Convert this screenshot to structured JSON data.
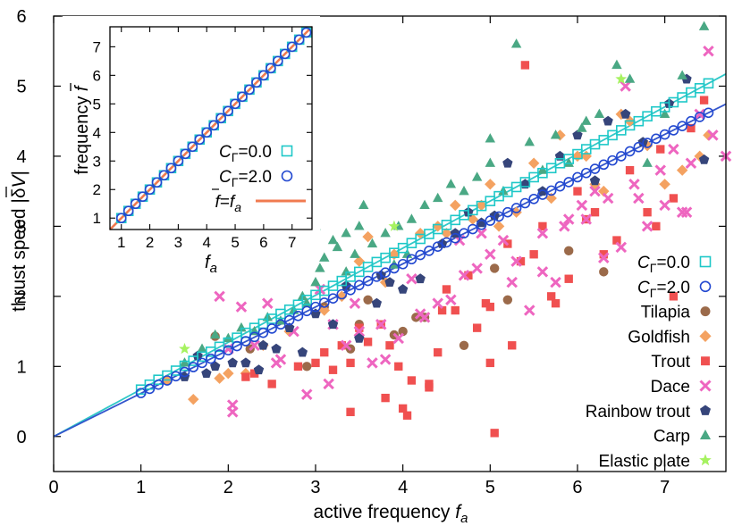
{
  "chart_data": [
    {
      "type": "scatter",
      "name": "main",
      "xlabel": "active frequency",
      "xlabel_symbol": "f",
      "xlabel_sub": "a",
      "ylabel": "thrust speed |δV|",
      "ylabel_prefix": "thrust speed |δ",
      "ylabel_symbol": "V",
      "ylabel_suffix": "|",
      "xlim": [
        0,
        7.7
      ],
      "ylim": [
        -0.5,
        6
      ],
      "xticks": [
        0,
        1,
        2,
        3,
        4,
        5,
        6,
        7
      ],
      "yticks": [
        0,
        1,
        2,
        3,
        4,
        5,
        6
      ],
      "legend_position": "bottom-right",
      "fit_lines": [
        {
          "name": "fit C=0.0",
          "color": "#2fc8c8",
          "slope": 0.672
        },
        {
          "name": "fit C=2.0",
          "color": "#3355cc",
          "slope": 0.616
        }
      ],
      "series": [
        {
          "name": "CΓ=0.0",
          "label_main": "C",
          "label_sub": "Γ",
          "label_value": "=0.0",
          "marker": "open-square",
          "color": "#1ec8c8",
          "x": [
            1.0,
            1.1,
            1.2,
            1.3,
            1.4,
            1.5,
            1.6,
            1.7,
            1.8,
            1.9,
            2.0,
            2.1,
            2.2,
            2.3,
            2.4,
            2.5,
            2.6,
            2.7,
            2.8,
            2.9,
            3.0,
            3.1,
            3.2,
            3.3,
            3.4,
            3.5,
            3.6,
            3.7,
            3.8,
            3.9,
            4.0,
            4.1,
            4.2,
            4.3,
            4.4,
            4.5,
            4.6,
            4.7,
            4.8,
            4.9,
            5.0,
            5.1,
            5.2,
            5.3,
            5.4,
            5.5,
            5.6,
            5.7,
            5.8,
            5.9,
            6.0,
            6.1,
            6.2,
            6.3,
            6.4,
            6.5,
            6.6,
            6.7,
            6.8,
            6.9,
            7.0,
            7.1,
            7.2,
            7.3,
            7.4,
            7.5
          ],
          "y": [
            0.67,
            0.74,
            0.81,
            0.87,
            0.94,
            1.01,
            1.08,
            1.14,
            1.21,
            1.28,
            1.34,
            1.41,
            1.48,
            1.55,
            1.61,
            1.68,
            1.75,
            1.81,
            1.88,
            1.95,
            2.02,
            2.08,
            2.15,
            2.22,
            2.28,
            2.35,
            2.42,
            2.49,
            2.55,
            2.62,
            2.69,
            2.76,
            2.82,
            2.89,
            2.96,
            3.02,
            3.09,
            3.16,
            3.23,
            3.29,
            3.36,
            3.43,
            3.49,
            3.56,
            3.63,
            3.7,
            3.76,
            3.83,
            3.9,
            3.96,
            4.03,
            4.1,
            4.17,
            4.23,
            4.3,
            4.37,
            4.44,
            4.5,
            4.57,
            4.64,
            4.7,
            4.77,
            4.84,
            4.91,
            4.97,
            5.04
          ]
        },
        {
          "name": "CΓ=2.0",
          "label_main": "C",
          "label_sub": "Γ",
          "label_value": "=2.0",
          "marker": "open-circle",
          "color": "#2248d0",
          "x": [
            1.0,
            1.1,
            1.2,
            1.3,
            1.4,
            1.5,
            1.6,
            1.7,
            1.8,
            1.9,
            2.0,
            2.1,
            2.2,
            2.3,
            2.4,
            2.5,
            2.6,
            2.7,
            2.8,
            2.9,
            3.0,
            3.1,
            3.2,
            3.3,
            3.4,
            3.5,
            3.6,
            3.7,
            3.8,
            3.9,
            4.0,
            4.1,
            4.2,
            4.3,
            4.4,
            4.5,
            4.6,
            4.7,
            4.8,
            4.9,
            5.0,
            5.1,
            5.2,
            5.3,
            5.4,
            5.5,
            5.6,
            5.7,
            5.8,
            5.9,
            6.0,
            6.1,
            6.2,
            6.3,
            6.4,
            6.5,
            6.6,
            6.7,
            6.8,
            6.9,
            7.0,
            7.1,
            7.2,
            7.3,
            7.4,
            7.5
          ],
          "y": [
            0.62,
            0.68,
            0.74,
            0.8,
            0.86,
            0.92,
            0.99,
            1.05,
            1.11,
            1.17,
            1.23,
            1.29,
            1.36,
            1.42,
            1.48,
            1.54,
            1.6,
            1.66,
            1.72,
            1.79,
            1.85,
            1.91,
            1.97,
            2.03,
            2.09,
            2.16,
            2.22,
            2.28,
            2.34,
            2.4,
            2.46,
            2.53,
            2.59,
            2.65,
            2.71,
            2.77,
            2.83,
            2.9,
            2.96,
            3.02,
            3.08,
            3.14,
            3.2,
            3.26,
            3.33,
            3.39,
            3.45,
            3.51,
            3.57,
            3.63,
            3.7,
            3.76,
            3.82,
            3.88,
            3.94,
            4.0,
            4.07,
            4.13,
            4.19,
            4.25,
            4.31,
            4.37,
            4.43,
            4.5,
            4.56,
            4.62
          ]
        },
        {
          "name": "Tilapia",
          "marker": "circle",
          "color": "#9b6a4a",
          "x": [
            1.85,
            2.25,
            2.9,
            3.4,
            3.5,
            3.9,
            4.0,
            4.15,
            4.25,
            4.7,
            5.05,
            5.2,
            5.9,
            6.3,
            3.1,
            3.6
          ],
          "y": [
            1.43,
            1.25,
            1.0,
            1.25,
            1.6,
            1.45,
            1.5,
            1.7,
            1.7,
            1.3,
            2.4,
            1.95,
            2.65,
            2.35,
            1.85,
            1.95
          ]
        },
        {
          "name": "Goldfish",
          "marker": "diamond",
          "color": "#f4a261",
          "x": [
            1.6,
            1.9,
            2.2,
            2.7,
            3.1,
            3.5,
            3.6,
            3.8,
            4.2,
            4.5,
            4.6,
            4.8,
            5.0,
            5.3,
            5.5,
            5.8,
            6.1,
            6.3,
            6.6,
            6.8,
            7.2,
            7.5,
            2.0,
            3.3,
            4.4,
            5.7,
            6.0,
            7.0,
            1.3,
            2.4,
            3.9,
            4.9,
            6.5,
            7.4,
            5.1,
            6.2
          ],
          "y": [
            0.53,
            0.83,
            0.9,
            1.5,
            1.8,
            2.5,
            2.85,
            2.2,
            2.9,
            2.9,
            3.3,
            3.1,
            3.6,
            3.2,
            3.9,
            4.3,
            4.0,
            3.5,
            4.5,
            4.15,
            3.8,
            4.3,
            0.9,
            2.0,
            3.0,
            3.4,
            4.0,
            3.6,
            0.8,
            1.3,
            2.6,
            3.3,
            4.6,
            4.0,
            3.0,
            3.6
          ]
        },
        {
          "name": "Trout",
          "marker": "square",
          "color": "#f05050",
          "x": [
            2.2,
            2.3,
            2.5,
            2.8,
            3.0,
            3.1,
            3.2,
            3.3,
            3.4,
            3.5,
            3.6,
            3.75,
            3.85,
            3.95,
            4.0,
            4.05,
            4.1,
            4.3,
            4.4,
            4.5,
            4.6,
            4.75,
            4.85,
            4.95,
            5.0,
            5.05,
            5.2,
            5.35,
            5.5,
            5.6,
            5.75,
            5.9,
            6.0,
            6.1,
            6.3,
            6.45,
            6.6,
            6.8,
            6.95,
            7.1,
            7.3,
            7.45,
            3.4,
            4.3,
            5.0,
            5.4,
            6.2,
            6.9,
            7.1,
            3.8,
            4.45,
            5.7,
            5.25
          ],
          "y": [
            0.85,
            0.9,
            0.75,
            1.0,
            1.05,
            1.2,
            0.95,
            1.3,
            1.05,
            1.55,
            1.35,
            1.6,
            1.3,
            1.0,
            0.4,
            0.3,
            0.8,
            0.7,
            1.2,
            2.1,
            1.8,
            2.3,
            1.55,
            1.9,
            1.05,
            0.05,
            2.75,
            2.5,
            2.6,
            3.0,
            1.9,
            2.25,
            3.5,
            3.1,
            2.6,
            2.8,
            3.8,
            3.2,
            4.1,
            3.4,
            4.4,
            4.8,
            0.35,
            0.75,
            1.85,
            5.3,
            3.2,
            3.0,
            2.0,
            0.55,
            1.8,
            2.0,
            1.3
          ]
        },
        {
          "name": "Dace",
          "marker": "x",
          "color": "#ee66c0",
          "x": [
            1.9,
            2.0,
            2.05,
            2.15,
            2.3,
            2.45,
            2.6,
            2.75,
            2.9,
            3.05,
            3.2,
            3.35,
            3.5,
            3.65,
            3.8,
            3.95,
            4.1,
            4.25,
            4.4,
            4.55,
            4.7,
            4.85,
            5.0,
            5.15,
            5.3,
            5.45,
            5.6,
            5.75,
            5.9,
            6.05,
            6.2,
            6.35,
            6.5,
            6.65,
            6.8,
            6.95,
            7.1,
            7.25,
            7.4,
            7.55,
            7.7,
            2.05,
            3.15,
            4.2,
            5.25,
            6.3,
            7.0,
            7.3,
            6.55,
            5.6,
            4.9,
            3.75,
            2.55,
            6.7,
            7.2,
            7.5,
            4.65,
            5.85,
            6.1,
            3.45
          ],
          "y": [
            2.0,
            1.25,
            0.35,
            1.85,
            1.3,
            1.9,
            1.1,
            1.5,
            0.6,
            2.1,
            1.6,
            1.3,
            1.5,
            1.05,
            1.1,
            1.4,
            2.25,
            1.7,
            1.9,
            1.95,
            2.3,
            2.4,
            2.6,
            2.8,
            2.5,
            1.8,
            2.9,
            2.2,
            3.1,
            3.3,
            3.5,
            3.4,
            2.7,
            3.6,
            3.0,
            3.8,
            4.1,
            3.2,
            4.6,
            4.3,
            4.0,
            0.45,
            0.75,
            1.75,
            2.2,
            2.55,
            3.3,
            3.9,
            5.0,
            2.35,
            2.9,
            1.6,
            1.05,
            3.4,
            3.2,
            5.5,
            2.8,
            3.0,
            3.1,
            1.9
          ]
        },
        {
          "name": "Rainbow trout",
          "marker": "pentagon",
          "color": "#36457a",
          "x": [
            1.5,
            1.65,
            1.75,
            1.85,
            2.05,
            2.2,
            2.4,
            2.55,
            2.7,
            2.85,
            3.0,
            3.2,
            3.35,
            3.5,
            3.7,
            3.85,
            4.0,
            4.2,
            4.45,
            4.6,
            4.75,
            4.9,
            5.05,
            5.2,
            5.4,
            5.6,
            6.0,
            6.2,
            6.35,
            6.55,
            6.75,
            7.05,
            7.25,
            7.45,
            2.35,
            3.75,
            5.8
          ],
          "y": [
            0.85,
            1.15,
            0.9,
            1.0,
            1.05,
            1.05,
            1.3,
            1.25,
            1.55,
            1.2,
            1.75,
            1.6,
            2.15,
            1.4,
            1.9,
            2.2,
            2.1,
            2.25,
            2.75,
            2.9,
            3.2,
            3.05,
            3.15,
            3.9,
            3.6,
            3.5,
            4.3,
            3.65,
            4.5,
            4.6,
            4.2,
            4.75,
            5.1,
            3.95,
            0.95,
            2.3,
            4.0
          ]
        },
        {
          "name": "Carp",
          "marker": "triangle",
          "color": "#4aa884",
          "x": [
            1.5,
            1.7,
            1.85,
            2.0,
            2.15,
            2.3,
            2.45,
            2.6,
            2.75,
            2.9,
            3.05,
            3.2,
            3.35,
            3.5,
            3.65,
            3.8,
            3.95,
            4.1,
            4.25,
            4.4,
            4.55,
            4.7,
            4.85,
            5.0,
            5.15,
            5.3,
            5.45,
            5.6,
            5.75,
            5.9,
            6.05,
            6.25,
            6.45,
            6.6,
            6.8,
            7.0,
            7.2,
            7.45,
            3.0,
            3.1,
            3.25,
            3.45,
            3.55,
            3.0,
            2.85,
            3.9,
            4.05,
            5.0,
            6.1,
            3.35
          ],
          "y": [
            1.05,
            1.25,
            1.45,
            1.4,
            1.55,
            1.5,
            1.7,
            1.65,
            1.8,
            1.9,
            2.4,
            2.8,
            2.9,
            3.0,
            2.75,
            2.9,
            3.0,
            3.1,
            3.3,
            3.4,
            3.6,
            3.5,
            3.7,
            3.9,
            3.5,
            5.6,
            4.2,
            3.8,
            4.3,
            3.9,
            4.4,
            4.6,
            5.3,
            5.1,
            3.9,
            4.6,
            5.15,
            5.85,
            2.2,
            2.55,
            2.7,
            2.6,
            3.3,
            3.0,
            2.0,
            2.45,
            2.6,
            4.25,
            4.5,
            2.35
          ]
        },
        {
          "name": "Elastic plate",
          "marker": "star",
          "color": "#a6f260",
          "x": [
            1.5,
            6.5,
            3.9
          ],
          "y": [
            1.25,
            5.1,
            3.0
          ]
        }
      ]
    },
    {
      "type": "line",
      "name": "inset",
      "xlabel_symbol": "f",
      "xlabel_sub": "a",
      "ylabel_prefix": "frequency",
      "ylabel_symbol": "f",
      "xlim": [
        0.6,
        7.7
      ],
      "ylim": [
        0.6,
        7.7
      ],
      "xticks": [
        1,
        2,
        3,
        4,
        5,
        6,
        7
      ],
      "yticks": [
        1,
        2,
        3,
        4,
        5,
        6,
        7
      ],
      "legend_position": "bottom-right",
      "series": [
        {
          "name": "CΓ=0.0",
          "label_main": "C",
          "label_sub": "Γ",
          "label_value": "=0.0",
          "marker": "open-square",
          "color": "#1ec8c8",
          "x": [
            1.0,
            1.25,
            1.5,
            1.75,
            2.0,
            2.25,
            2.5,
            2.75,
            3.0,
            3.25,
            3.5,
            3.75,
            4.0,
            4.25,
            4.5,
            4.75,
            5.0,
            5.25,
            5.5,
            5.75,
            6.0,
            6.25,
            6.5,
            6.75,
            7.0,
            7.25,
            7.5
          ],
          "y": [
            1.0,
            1.25,
            1.5,
            1.75,
            2.0,
            2.25,
            2.5,
            2.75,
            3.0,
            3.25,
            3.5,
            3.75,
            4.0,
            4.25,
            4.5,
            4.75,
            5.0,
            5.25,
            5.5,
            5.75,
            6.0,
            6.25,
            6.5,
            6.75,
            7.0,
            7.25,
            7.5
          ]
        },
        {
          "name": "CΓ=2.0",
          "label_main": "C",
          "label_sub": "Γ",
          "label_value": "=2.0",
          "marker": "open-circle",
          "color": "#2248d0",
          "x": [
            1.0,
            1.25,
            1.5,
            1.75,
            2.0,
            2.25,
            2.5,
            2.75,
            3.0,
            3.25,
            3.5,
            3.75,
            4.0,
            4.25,
            4.5,
            4.75,
            5.0,
            5.25,
            5.5,
            5.75,
            6.0,
            6.25,
            6.5,
            6.75,
            7.0,
            7.25,
            7.5
          ],
          "y": [
            1.0,
            1.25,
            1.5,
            1.75,
            2.0,
            2.25,
            2.5,
            2.75,
            3.0,
            3.25,
            3.5,
            3.75,
            4.0,
            4.25,
            4.5,
            4.75,
            5.0,
            5.25,
            5.5,
            5.75,
            6.0,
            6.25,
            6.5,
            6.75,
            7.0,
            7.25,
            7.5
          ]
        },
        {
          "name": "f=fa",
          "label_lhs": "f",
          "label_eq": "=",
          "label_rhs": "f",
          "label_rhs_sub": "a",
          "marker": "line",
          "color": "#f07a50",
          "x": [
            0.6,
            7.7
          ],
          "y": [
            0.6,
            7.7
          ]
        }
      ]
    }
  ]
}
